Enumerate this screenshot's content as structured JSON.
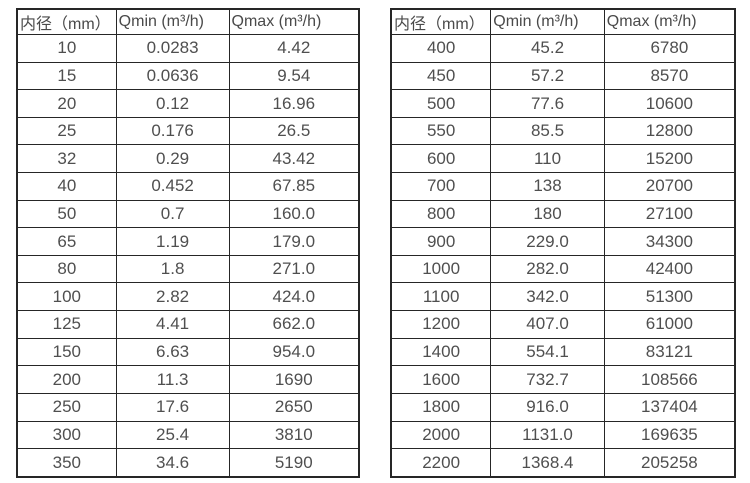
{
  "page": {
    "background_color": "#ffffff",
    "text_color": "#4a4a4a",
    "border_color": "#262626"
  },
  "tables": [
    {
      "name": "flow-spec-table-small-diameters",
      "headers": [
        "内径（mm）",
        "Qmin (m³/h)",
        "Qmax (m³/h)"
      ],
      "rows": [
        [
          "10",
          "0.0283",
          "4.42"
        ],
        [
          "15",
          "0.0636",
          "9.54"
        ],
        [
          "20",
          "0.12",
          "16.96"
        ],
        [
          "25",
          "0.176",
          "26.5"
        ],
        [
          "32",
          "0.29",
          "43.42"
        ],
        [
          "40",
          "0.452",
          "67.85"
        ],
        [
          "50",
          "0.7",
          "160.0"
        ],
        [
          "65",
          "1.19",
          "179.0"
        ],
        [
          "80",
          "1.8",
          "271.0"
        ],
        [
          "100",
          "2.82",
          "424.0"
        ],
        [
          "125",
          "4.41",
          "662.0"
        ],
        [
          "150",
          "6.63",
          "954.0"
        ],
        [
          "200",
          "11.3",
          "1690"
        ],
        [
          "250",
          "17.6",
          "2650"
        ],
        [
          "300",
          "25.4",
          "3810"
        ],
        [
          "350",
          "34.6",
          "5190"
        ]
      ]
    },
    {
      "name": "flow-spec-table-large-diameters",
      "headers": [
        "内径（mm）",
        "Qmin (m³/h)",
        "Qmax (m³/h)"
      ],
      "rows": [
        [
          "400",
          "45.2",
          "6780"
        ],
        [
          "450",
          "57.2",
          "8570"
        ],
        [
          "500",
          "77.6",
          "10600"
        ],
        [
          "550",
          "85.5",
          "12800"
        ],
        [
          "600",
          "110",
          "15200"
        ],
        [
          "700",
          "138",
          "20700"
        ],
        [
          "800",
          "180",
          "27100"
        ],
        [
          "900",
          "229.0",
          "34300"
        ],
        [
          "1000",
          "282.0",
          "42400"
        ],
        [
          "1100",
          "342.0",
          "51300"
        ],
        [
          "1200",
          "407.0",
          "61000"
        ],
        [
          "1400",
          "554.1",
          "83121"
        ],
        [
          "1600",
          "732.7",
          "108566"
        ],
        [
          "1800",
          "916.0",
          "137404"
        ],
        [
          "2000",
          "1131.0",
          "169635"
        ],
        [
          "2200",
          "1368.4",
          "205258"
        ]
      ]
    }
  ]
}
